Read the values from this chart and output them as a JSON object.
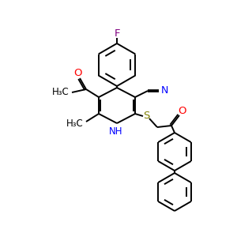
{
  "bg_color": "#FFFFFF",
  "bond_color": "#000000",
  "N_color": "#0000FF",
  "O_color": "#FF0000",
  "F_color": "#800080",
  "S_color": "#808000",
  "lw": 1.4,
  "fig_w": 3.0,
  "fig_h": 3.0,
  "dpi": 100,
  "font_size": 8.5
}
